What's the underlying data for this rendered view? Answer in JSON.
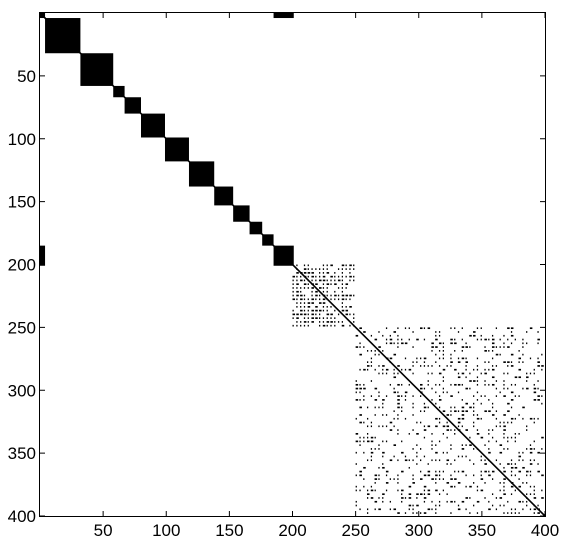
{
  "chart_data": {
    "type": "heatmap",
    "description_kind": "sparsity-pattern",
    "title": "",
    "xlabel": "",
    "ylabel": "",
    "xlim": [
      0,
      400
    ],
    "ylim": [
      400,
      0
    ],
    "y_axis_direction": "down",
    "x_ticks": [
      50,
      100,
      150,
      200,
      250,
      300,
      350,
      400
    ],
    "y_ticks": [
      50,
      100,
      150,
      200,
      250,
      300,
      350,
      400
    ],
    "x_tick_labels": [
      "50",
      "100",
      "150",
      "200",
      "250",
      "300",
      "350",
      "400"
    ],
    "y_tick_labels": [
      "50",
      "100",
      "150",
      "200",
      "250",
      "300",
      "350",
      "400"
    ],
    "grid": false,
    "marker_color": "#000000",
    "dense_blocks": [
      {
        "row_start": 1,
        "row_end": 4,
        "col_start": 1,
        "col_end": 4
      },
      {
        "row_start": 5,
        "row_end": 32,
        "col_start": 5,
        "col_end": 32
      },
      {
        "row_start": 33,
        "row_end": 58,
        "col_start": 33,
        "col_end": 58
      },
      {
        "row_start": 59,
        "row_end": 67,
        "col_start": 59,
        "col_end": 67
      },
      {
        "row_start": 68,
        "row_end": 80,
        "col_start": 68,
        "col_end": 80
      },
      {
        "row_start": 81,
        "row_end": 99,
        "col_start": 81,
        "col_end": 99
      },
      {
        "row_start": 100,
        "row_end": 118,
        "col_start": 100,
        "col_end": 118
      },
      {
        "row_start": 119,
        "row_end": 138,
        "col_start": 119,
        "col_end": 138
      },
      {
        "row_start": 139,
        "row_end": 153,
        "col_start": 139,
        "col_end": 153
      },
      {
        "row_start": 154,
        "row_end": 166,
        "col_start": 154,
        "col_end": 166
      },
      {
        "row_start": 167,
        "row_end": 176,
        "col_start": 167,
        "col_end": 176
      },
      {
        "row_start": 177,
        "row_end": 185,
        "col_start": 177,
        "col_end": 185
      },
      {
        "row_start": 186,
        "row_end": 201,
        "col_start": 186,
        "col_end": 201
      },
      {
        "row_start": 1,
        "row_end": 4,
        "col_start": 186,
        "col_end": 201
      },
      {
        "row_start": 186,
        "row_end": 201,
        "col_start": 1,
        "col_end": 4
      }
    ],
    "sparse_blocks": [
      {
        "row_start": 201,
        "row_end": 251,
        "col_start": 201,
        "col_end": 251,
        "density": 0.55,
        "bands": [
          212,
          226,
          240
        ]
      },
      {
        "row_start": 251,
        "row_end": 400,
        "col_start": 251,
        "col_end": 400,
        "density": 0.32,
        "bands": []
      }
    ],
    "diagonal": {
      "start": 1,
      "end": 400
    }
  }
}
